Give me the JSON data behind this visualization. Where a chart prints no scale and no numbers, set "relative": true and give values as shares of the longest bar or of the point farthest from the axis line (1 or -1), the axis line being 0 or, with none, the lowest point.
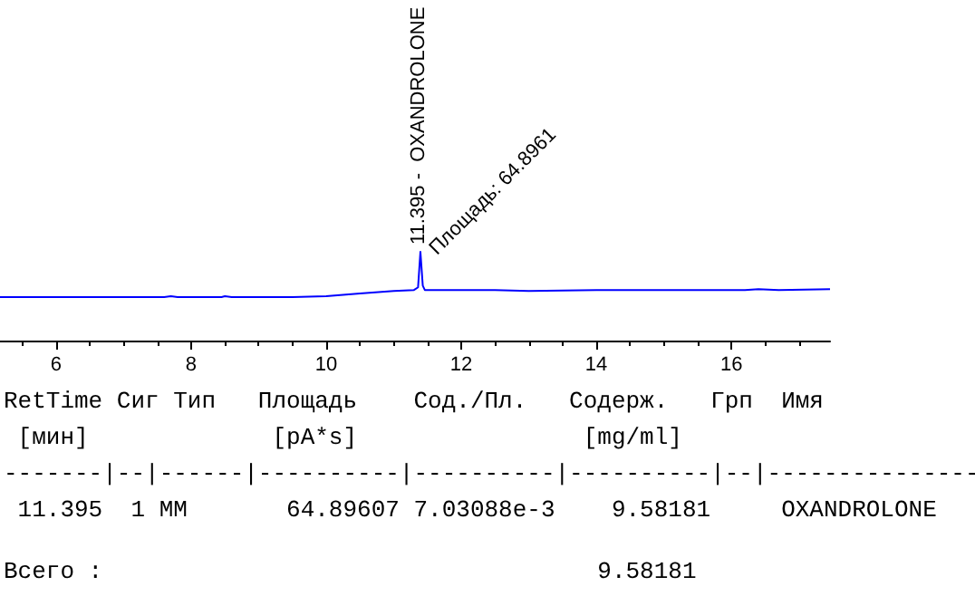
{
  "chart_data": {
    "type": "line",
    "relative": true,
    "x": [
      5.17,
      7.6,
      7.7,
      7.8,
      8.45,
      8.5,
      8.6,
      9.5,
      10.0,
      10.5,
      11.0,
      11.3,
      11.36,
      11.395,
      11.43,
      11.46,
      12.5,
      13.0,
      14.0,
      15.0,
      16.2,
      16.4,
      16.7,
      17.46
    ],
    "series": [
      {
        "color": "#0000ff",
        "values": [
          0.49,
          0.49,
          0.5,
          0.49,
          0.49,
          0.5,
          0.49,
          0.49,
          0.5,
          0.53,
          0.56,
          0.57,
          0.6,
          1.0,
          0.62,
          0.57,
          0.57,
          0.56,
          0.57,
          0.57,
          0.57,
          0.58,
          0.57,
          0.58
        ]
      }
    ],
    "xlim": [
      5.17,
      17.46
    ],
    "xticks": [
      6,
      8,
      10,
      12,
      14,
      16
    ],
    "grid": false,
    "marker": "none",
    "line_style": "solid",
    "tick_labels": "x",
    "annotations": [
      {
        "text": "11.395 -  OXANDROLONE",
        "x": 11.395,
        "y": 1.0
      },
      {
        "text": "Площадь: 64.8961",
        "x": 11.395,
        "y": 1.0
      },
      "RetTime Сиг Тип   Площадь    Сод./Пл.   Содерж.   Грп  Имя",
      " [мин]             [pA*s]                [mg/ml]",
      "-------|--|------|----------|----------|----------|--|---------------",
      " 11.395  1 MM       64.89607 7.03088e-3    9.58181     OXANDROLONE",
      "Всего :                                   9.58181"
    ]
  }
}
